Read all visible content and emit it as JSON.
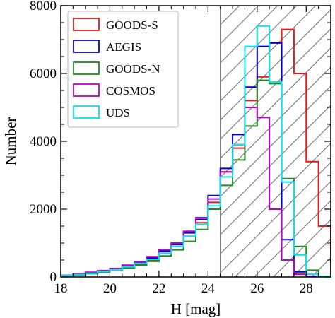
{
  "chart_data": {
    "type": "histogram",
    "xlabel": "H [mag]",
    "ylabel": "Number",
    "xlim": [
      18,
      29
    ],
    "ylim": [
      0,
      8000
    ],
    "xticks": [
      18,
      20,
      22,
      24,
      26,
      28
    ],
    "yticks": [
      0,
      2000,
      4000,
      6000,
      8000
    ],
    "x_tick_labels": [
      "18",
      "20",
      "22",
      "24",
      "26",
      "28"
    ],
    "y_tick_labels": [
      "0",
      "2000",
      "4000",
      "6000",
      "8000"
    ],
    "bin_edges": [
      18.0,
      18.5,
      19.0,
      19.5,
      20.0,
      20.5,
      21.0,
      21.5,
      22.0,
      22.5,
      23.0,
      23.5,
      24.0,
      24.5,
      25.0,
      25.5,
      26.0,
      26.5,
      27.0,
      27.5,
      28.0,
      28.5,
      29.0
    ],
    "hatched_region": {
      "x_from": 24.5,
      "x_to": 29.0,
      "hatch": "diagonal",
      "color": "#808080"
    },
    "legend_position": "top-left",
    "series": [
      {
        "name": "GOODS-S",
        "color": "#e41a1c",
        "values": [
          30,
          60,
          100,
          150,
          200,
          280,
          380,
          500,
          700,
          900,
          1200,
          1600,
          2200,
          3100,
          3800,
          5200,
          5900,
          6900,
          7300,
          6000,
          3400,
          1500
        ]
      },
      {
        "name": "AEGIS",
        "color": "#0000cc",
        "values": [
          40,
          80,
          120,
          170,
          230,
          330,
          420,
          560,
          760,
          960,
          1300,
          1700,
          2400,
          3200,
          4200,
          5600,
          6800,
          6900,
          1100,
          150,
          20,
          0
        ]
      },
      {
        "name": "GOODS-N",
        "color": "#228b22",
        "values": [
          30,
          60,
          100,
          140,
          190,
          260,
          350,
          460,
          620,
          800,
          1050,
          1400,
          2000,
          2700,
          3450,
          4450,
          5800,
          5700,
          2900,
          900,
          200,
          20
        ]
      },
      {
        "name": "COSMOS",
        "color": "#bb00cc",
        "values": [
          50,
          90,
          140,
          190,
          250,
          350,
          450,
          600,
          800,
          1000,
          1350,
          1750,
          2300,
          3100,
          3900,
          5000,
          4700,
          2000,
          500,
          80,
          10,
          0
        ]
      },
      {
        "name": "UDS",
        "color": "#00e5ee",
        "values": [
          40,
          70,
          110,
          160,
          210,
          300,
          400,
          520,
          700,
          900,
          1200,
          1550,
          2100,
          2950,
          3900,
          6800,
          7400,
          5750,
          2800,
          650,
          80,
          10
        ]
      }
    ]
  }
}
